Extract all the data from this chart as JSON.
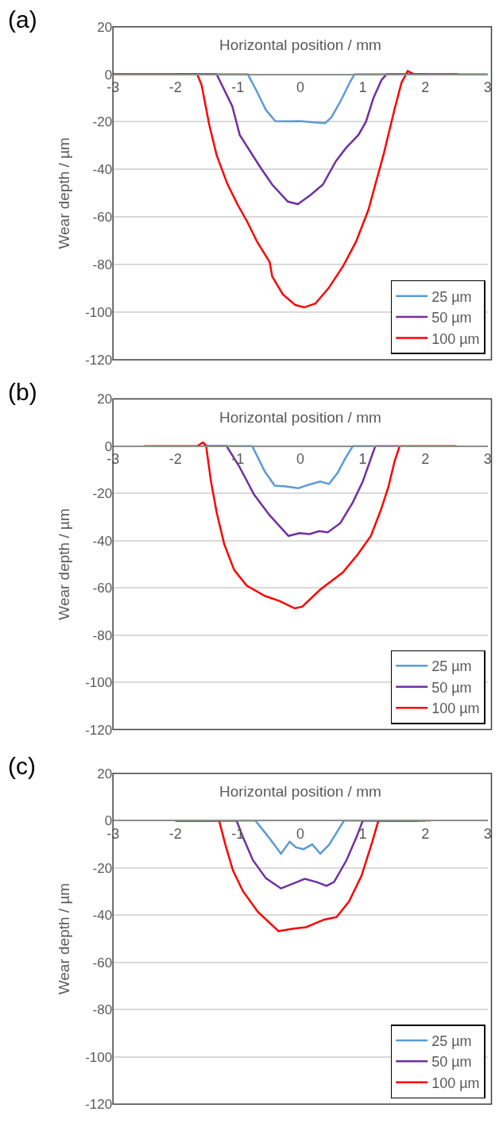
{
  "chart_data": [
    {
      "type": "line",
      "title": "(a)",
      "xlabel": "Horizontal position / mm",
      "ylabel": "Wear depth / µm",
      "xlim": [
        -3,
        3
      ],
      "xticks": [
        -3,
        -2,
        -1,
        0,
        1,
        2,
        3
      ],
      "ylim": [
        -120,
        20
      ],
      "yticks": [
        -120,
        -100,
        -80,
        -60,
        -40,
        -20,
        0,
        20
      ],
      "grid": "y",
      "legend": "bottom right",
      "series": [
        {
          "name": "25 µm",
          "color": "#5b9bd5",
          "x": [
            -3,
            -0.84,
            -0.7,
            -0.55,
            -0.4,
            -0.2,
            0,
            0.2,
            0.4,
            0.5,
            0.65,
            0.8,
            0.87,
            3
          ],
          "values": [
            0,
            0,
            -7,
            -15,
            -19.7,
            -19.8,
            -19.7,
            -20.2,
            -20.5,
            -18,
            -11,
            -3,
            0,
            0
          ]
        },
        {
          "name": "50 µm",
          "color": "#7030a0",
          "x": [
            -3,
            -1.34,
            -1.09,
            -0.97,
            -0.65,
            -0.45,
            -0.2,
            -0.04,
            0.16,
            0.36,
            0.57,
            0.73,
            0.93,
            1.05,
            1.17,
            1.3,
            1.38,
            2.53
          ],
          "values": [
            0,
            0,
            -13.4,
            -25.5,
            -38.7,
            -46.4,
            -53.5,
            -54.6,
            -50.8,
            -46.4,
            -36.5,
            -31,
            -25.5,
            -20,
            -10,
            -2.4,
            0,
            0
          ]
        },
        {
          "name": "100 µm",
          "color": "#ff0000",
          "x": [
            -2,
            -1.65,
            -1.58,
            -1.46,
            -1.34,
            -1.17,
            -1.0,
            -0.85,
            -0.69,
            -0.49,
            -0.45,
            -0.28,
            -0.08,
            0.06,
            0.24,
            0.45,
            0.69,
            0.89,
            1.09,
            1.34,
            1.5,
            1.62,
            1.72,
            1.82,
            2.0
          ],
          "values": [
            0,
            0,
            -4.6,
            -21,
            -34,
            -46,
            -55,
            -62,
            -70.5,
            -79,
            -85,
            -92.5,
            -97,
            -98,
            -96.4,
            -90,
            -80.4,
            -70.5,
            -57,
            -33,
            -15.6,
            -3.5,
            1.4,
            0,
            0
          ]
        }
      ]
    },
    {
      "type": "line",
      "title": "(b)",
      "xlabel": "Horizontal position / mm",
      "ylabel": "Wear depth / µm",
      "xlim": [
        -3,
        3
      ],
      "xticks": [
        -3,
        -2,
        -1,
        0,
        1,
        2,
        3
      ],
      "ylim": [
        -120,
        20
      ],
      "yticks": [
        -120,
        -100,
        -80,
        -60,
        -40,
        -20,
        0,
        20
      ],
      "grid": "y",
      "legend": "bottom right",
      "series": [
        {
          "name": "25 µm",
          "color": "#5b9bd5",
          "x": [
            -1.6,
            -0.77,
            -0.57,
            -0.41,
            -0.25,
            -0.03,
            0.15,
            0.32,
            0.46,
            0.6,
            0.72,
            0.84,
            1.17
          ],
          "values": [
            0,
            0,
            -10.7,
            -16.7,
            -17,
            -17.8,
            -16.2,
            -15,
            -16,
            -11.2,
            -5.2,
            0,
            0
          ]
        },
        {
          "name": "50 µm",
          "color": "#7030a0",
          "x": [
            -1.55,
            -1.18,
            -0.98,
            -0.74,
            -0.49,
            -0.19,
            -0.01,
            0.15,
            0.3,
            0.44,
            0.64,
            0.84,
            1.0,
            1.13,
            1.2,
            1.57
          ],
          "values": [
            0,
            0,
            -8.5,
            -20.5,
            -29.3,
            -38,
            -36.8,
            -37.2,
            -36,
            -36.5,
            -32.6,
            -23.8,
            -15,
            -5.2,
            0,
            0
          ]
        },
        {
          "name": "100 µm",
          "color": "#ff0000",
          "x": [
            -2.5,
            -1.65,
            -1.56,
            -1.51,
            -1.43,
            -1.34,
            -1.22,
            -1.06,
            -0.86,
            -0.57,
            -0.33,
            -0.09,
            0.03,
            0.32,
            0.68,
            0.92,
            1.13,
            1.29,
            1.41,
            1.51,
            1.59,
            2.5
          ],
          "values": [
            0,
            0,
            1.6,
            0.3,
            -15,
            -28,
            -41.4,
            -52.4,
            -59,
            -63.4,
            -65.6,
            -68.7,
            -68,
            -60.7,
            -53.5,
            -45.8,
            -38,
            -27,
            -17.3,
            -6.3,
            0,
            0
          ]
        }
      ]
    },
    {
      "type": "line",
      "title": "(c)",
      "xlabel": "Horizontal position / mm",
      "ylabel": "Wear depth / µm",
      "xlim": [
        -3,
        3
      ],
      "xticks": [
        -3,
        -2,
        -1,
        0,
        1,
        2,
        3
      ],
      "ylim": [
        -120,
        20
      ],
      "yticks": [
        -120,
        -100,
        -80,
        -60,
        -40,
        -20,
        0,
        20
      ],
      "grid": "y",
      "legend": "bottom right",
      "series": [
        {
          "name": "25 µm",
          "color": "#5b9bd5",
          "x": [
            -2,
            -0.72,
            -0.51,
            -0.31,
            -0.17,
            -0.07,
            0.05,
            0.19,
            0.32,
            0.46,
            0.7,
            2.09
          ],
          "values": [
            0,
            0,
            -6.9,
            -14,
            -8.9,
            -11.3,
            -12.1,
            -10,
            -14,
            -10.2,
            0,
            0
          ]
        },
        {
          "name": "50 µm",
          "color": "#7030a0",
          "x": [
            -2,
            -1.02,
            -0.92,
            -0.76,
            -0.55,
            -0.31,
            -0.11,
            0.07,
            0.26,
            0.42,
            0.54,
            0.74,
            0.9,
            1.0,
            2.0
          ],
          "values": [
            0,
            0,
            -6.9,
            -16.7,
            -24.4,
            -28.7,
            -26.6,
            -24.6,
            -26,
            -27.6,
            -26,
            -16.7,
            -6.9,
            0,
            0
          ]
        },
        {
          "name": "100 µm",
          "color": "#ff0000",
          "x": [
            -2,
            -1.3,
            -1.2,
            -1.08,
            -0.92,
            -0.68,
            -0.35,
            -0.11,
            0.09,
            0.38,
            0.58,
            0.78,
            0.98,
            1.15,
            1.25,
            1.89
          ],
          "values": [
            0,
            0,
            -10.2,
            -21,
            -29.8,
            -38.6,
            -46.8,
            -45.7,
            -45.1,
            -41.9,
            -40.8,
            -34.2,
            -23.3,
            -9.1,
            0,
            0
          ]
        }
      ]
    }
  ]
}
